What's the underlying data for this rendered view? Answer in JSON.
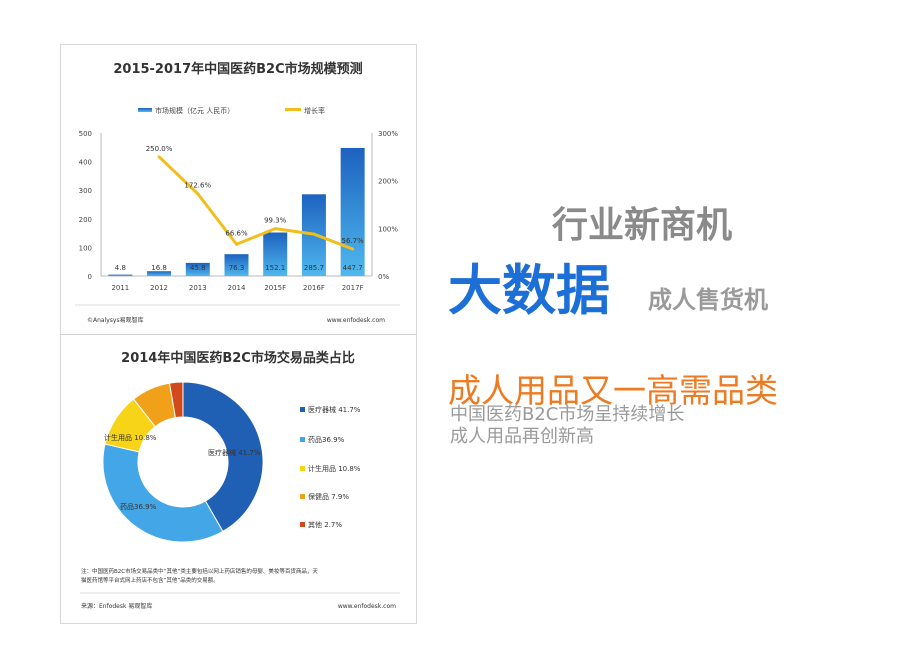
{
  "headline": {
    "line1": "行业新商机",
    "line2": "大数据",
    "line3": "成人售货机",
    "line4": "成人用品又一高需品类",
    "line5": "中国医药B2C市场呈持续增长",
    "line6": "成人用品再创新高"
  },
  "colors": {
    "accent_blue": "#1b6fd6",
    "accent_orange": "#ee7a22",
    "gray_text": "#8a8a8a"
  },
  "chart_data": [
    {
      "type": "bar",
      "title": "2015-2017年中国医药B2C市场规模预测",
      "categories": [
        "2011",
        "2012",
        "2013",
        "2014",
        "2015F",
        "2016F",
        "2017F"
      ],
      "series": [
        {
          "name": "市场规模（亿元 人民币）",
          "type": "bar",
          "axis": "left",
          "color": "#2a7fd0",
          "values": [
            4.8,
            16.8,
            45.8,
            76.3,
            152.1,
            285.7,
            447.7
          ],
          "labels": [
            "4.8",
            "16.8",
            "45.8",
            "76.3",
            "152.1",
            "285.7",
            "447.7"
          ]
        },
        {
          "name": "增长率",
          "type": "line",
          "axis": "right",
          "color": "#f2be1c",
          "values": [
            null,
            250.0,
            172.6,
            66.6,
            99.3,
            87.8,
            56.7
          ],
          "labels": [
            "",
            "250.0%",
            "172.6%",
            "66.6%",
            "99.3%",
            "",
            "56.7%"
          ]
        }
      ],
      "ylim_left": [
        0,
        500
      ],
      "yticks_left": [
        "0",
        "100",
        "200",
        "300",
        "400",
        "500"
      ],
      "ylim_right": [
        0,
        300
      ],
      "yticks_right": [
        "0%",
        "100%",
        "200%",
        "300%"
      ],
      "legend": "top",
      "grid": false,
      "source": "©Analysys易观智库",
      "website": "www.enfodesk.com"
    },
    {
      "type": "pie",
      "donut": true,
      "title": "2014年中国医药B2C市场交易品类占比",
      "slices": [
        {
          "label": "医疗器械",
          "value": 41.7,
          "color": "#1f5fb4",
          "legend": "医疗器械 41.7%",
          "data_label": "医疗器械 41.7%"
        },
        {
          "label": "药品",
          "value": 36.9,
          "color": "#43a6e6",
          "legend": "药品36.9%",
          "data_label": "药品36.9%"
        },
        {
          "label": "计生用品",
          "value": 10.8,
          "color": "#f7d417",
          "legend": "计生用品 10.8%",
          "data_label": "计生用品 10.8%"
        },
        {
          "label": "保健品",
          "value": 7.9,
          "color": "#f0a019",
          "legend": "保健品 7.9%",
          "data_label": ""
        },
        {
          "label": "其他",
          "value": 2.7,
          "color": "#d24a1c",
          "legend": "其他 2.7%",
          "data_label": ""
        }
      ],
      "legend_placement": "right",
      "note_line1": "注：中国医药B2C市场交易品类中“其他”类主要包括以网上药店销售的母婴、美妆等百货商品，天",
      "note_line2": "猫医药馆等平台式网上药店不包含“其他”品类的交易额。",
      "source": "来源：Enfodesk 易观智库",
      "website": "www.enfodesk.com"
    }
  ]
}
